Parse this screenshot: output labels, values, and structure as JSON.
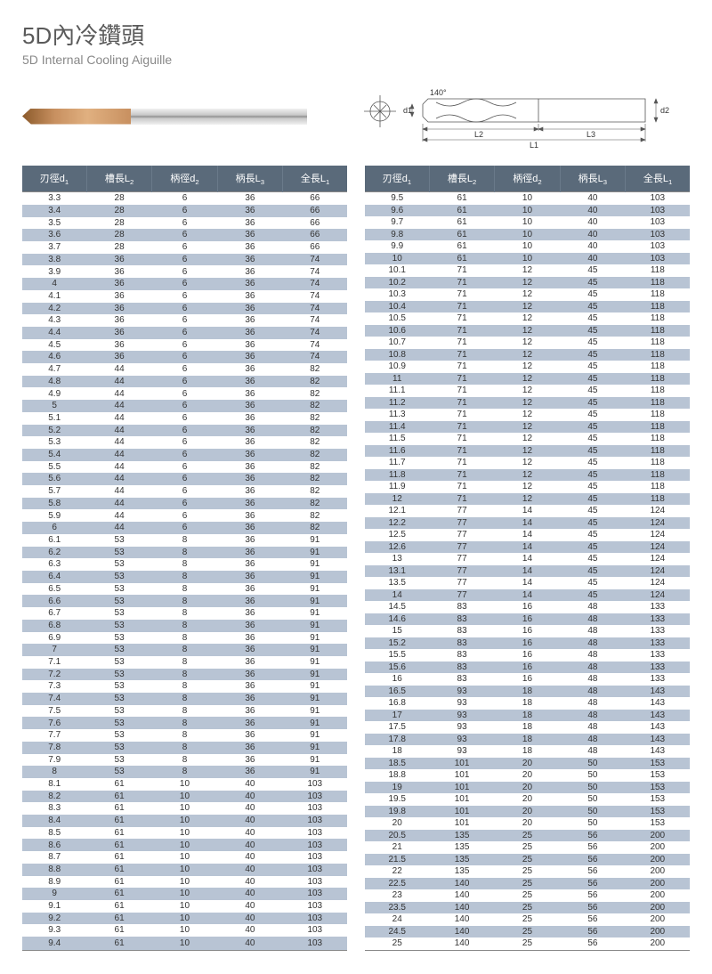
{
  "title_cn": "5D內冷鑽頭",
  "title_en": "5D Internal Cooling Aiguille",
  "diagram_labels": {
    "d1": "d1",
    "d2": "d2",
    "angle": "140°",
    "L1": "L1",
    "L2": "L2",
    "L3": "L3"
  },
  "colors": {
    "header_bg": "#5a6a7a",
    "band_bg": "#b8c4d4",
    "text": "#333333",
    "title": "#5a5a5a",
    "subtitle": "#888888"
  },
  "columns": [
    {
      "label": "刃徑d",
      "sub": "1"
    },
    {
      "label": "槽長L",
      "sub": "2"
    },
    {
      "label": "柄徑d",
      "sub": "2"
    },
    {
      "label": "柄長L",
      "sub": "3"
    },
    {
      "label": "全長L",
      "sub": "1"
    }
  ],
  "left_rows": [
    [
      "3.3",
      "28",
      "6",
      "36",
      "66"
    ],
    [
      "3.4",
      "28",
      "6",
      "36",
      "66"
    ],
    [
      "3.5",
      "28",
      "6",
      "36",
      "66"
    ],
    [
      "3.6",
      "28",
      "6",
      "36",
      "66"
    ],
    [
      "3.7",
      "28",
      "6",
      "36",
      "66"
    ],
    [
      "3.8",
      "36",
      "6",
      "36",
      "74"
    ],
    [
      "3.9",
      "36",
      "6",
      "36",
      "74"
    ],
    [
      "4",
      "36",
      "6",
      "36",
      "74"
    ],
    [
      "4.1",
      "36",
      "6",
      "36",
      "74"
    ],
    [
      "4.2",
      "36",
      "6",
      "36",
      "74"
    ],
    [
      "4.3",
      "36",
      "6",
      "36",
      "74"
    ],
    [
      "4.4",
      "36",
      "6",
      "36",
      "74"
    ],
    [
      "4.5",
      "36",
      "6",
      "36",
      "74"
    ],
    [
      "4.6",
      "36",
      "6",
      "36",
      "74"
    ],
    [
      "4.7",
      "44",
      "6",
      "36",
      "82"
    ],
    [
      "4.8",
      "44",
      "6",
      "36",
      "82"
    ],
    [
      "4.9",
      "44",
      "6",
      "36",
      "82"
    ],
    [
      "5",
      "44",
      "6",
      "36",
      "82"
    ],
    [
      "5.1",
      "44",
      "6",
      "36",
      "82"
    ],
    [
      "5.2",
      "44",
      "6",
      "36",
      "82"
    ],
    [
      "5.3",
      "44",
      "6",
      "36",
      "82"
    ],
    [
      "5.4",
      "44",
      "6",
      "36",
      "82"
    ],
    [
      "5.5",
      "44",
      "6",
      "36",
      "82"
    ],
    [
      "5.6",
      "44",
      "6",
      "36",
      "82"
    ],
    [
      "5.7",
      "44",
      "6",
      "36",
      "82"
    ],
    [
      "5.8",
      "44",
      "6",
      "36",
      "82"
    ],
    [
      "5.9",
      "44",
      "6",
      "36",
      "82"
    ],
    [
      "6",
      "44",
      "6",
      "36",
      "82"
    ],
    [
      "6.1",
      "53",
      "8",
      "36",
      "91"
    ],
    [
      "6.2",
      "53",
      "8",
      "36",
      "91"
    ],
    [
      "6.3",
      "53",
      "8",
      "36",
      "91"
    ],
    [
      "6.4",
      "53",
      "8",
      "36",
      "91"
    ],
    [
      "6.5",
      "53",
      "8",
      "36",
      "91"
    ],
    [
      "6.6",
      "53",
      "8",
      "36",
      "91"
    ],
    [
      "6.7",
      "53",
      "8",
      "36",
      "91"
    ],
    [
      "6.8",
      "53",
      "8",
      "36",
      "91"
    ],
    [
      "6.9",
      "53",
      "8",
      "36",
      "91"
    ],
    [
      "7",
      "53",
      "8",
      "36",
      "91"
    ],
    [
      "7.1",
      "53",
      "8",
      "36",
      "91"
    ],
    [
      "7.2",
      "53",
      "8",
      "36",
      "91"
    ],
    [
      "7.3",
      "53",
      "8",
      "36",
      "91"
    ],
    [
      "7.4",
      "53",
      "8",
      "36",
      "91"
    ],
    [
      "7.5",
      "53",
      "8",
      "36",
      "91"
    ],
    [
      "7.6",
      "53",
      "8",
      "36",
      "91"
    ],
    [
      "7.7",
      "53",
      "8",
      "36",
      "91"
    ],
    [
      "7.8",
      "53",
      "8",
      "36",
      "91"
    ],
    [
      "7.9",
      "53",
      "8",
      "36",
      "91"
    ],
    [
      "8",
      "53",
      "8",
      "36",
      "91"
    ],
    [
      "8.1",
      "61",
      "10",
      "40",
      "103"
    ],
    [
      "8.2",
      "61",
      "10",
      "40",
      "103"
    ],
    [
      "8.3",
      "61",
      "10",
      "40",
      "103"
    ],
    [
      "8.4",
      "61",
      "10",
      "40",
      "103"
    ],
    [
      "8.5",
      "61",
      "10",
      "40",
      "103"
    ],
    [
      "8.6",
      "61",
      "10",
      "40",
      "103"
    ],
    [
      "8.7",
      "61",
      "10",
      "40",
      "103"
    ],
    [
      "8.8",
      "61",
      "10",
      "40",
      "103"
    ],
    [
      "8.9",
      "61",
      "10",
      "40",
      "103"
    ],
    [
      "9",
      "61",
      "10",
      "40",
      "103"
    ],
    [
      "9.1",
      "61",
      "10",
      "40",
      "103"
    ],
    [
      "9.2",
      "61",
      "10",
      "40",
      "103"
    ],
    [
      "9.3",
      "61",
      "10",
      "40",
      "103"
    ],
    [
      "9.4",
      "61",
      "10",
      "40",
      "103"
    ]
  ],
  "right_rows": [
    [
      "9.5",
      "61",
      "10",
      "40",
      "103"
    ],
    [
      "9.6",
      "61",
      "10",
      "40",
      "103"
    ],
    [
      "9.7",
      "61",
      "10",
      "40",
      "103"
    ],
    [
      "9.8",
      "61",
      "10",
      "40",
      "103"
    ],
    [
      "9.9",
      "61",
      "10",
      "40",
      "103"
    ],
    [
      "10",
      "61",
      "10",
      "40",
      "103"
    ],
    [
      "10.1",
      "71",
      "12",
      "45",
      "118"
    ],
    [
      "10.2",
      "71",
      "12",
      "45",
      "118"
    ],
    [
      "10.3",
      "71",
      "12",
      "45",
      "118"
    ],
    [
      "10.4",
      "71",
      "12",
      "45",
      "118"
    ],
    [
      "10.5",
      "71",
      "12",
      "45",
      "118"
    ],
    [
      "10.6",
      "71",
      "12",
      "45",
      "118"
    ],
    [
      "10.7",
      "71",
      "12",
      "45",
      "118"
    ],
    [
      "10.8",
      "71",
      "12",
      "45",
      "118"
    ],
    [
      "10.9",
      "71",
      "12",
      "45",
      "118"
    ],
    [
      "11",
      "71",
      "12",
      "45",
      "118"
    ],
    [
      "11.1",
      "71",
      "12",
      "45",
      "118"
    ],
    [
      "11.2",
      "71",
      "12",
      "45",
      "118"
    ],
    [
      "11.3",
      "71",
      "12",
      "45",
      "118"
    ],
    [
      "11.4",
      "71",
      "12",
      "45",
      "118"
    ],
    [
      "11.5",
      "71",
      "12",
      "45",
      "118"
    ],
    [
      "11.6",
      "71",
      "12",
      "45",
      "118"
    ],
    [
      "11.7",
      "71",
      "12",
      "45",
      "118"
    ],
    [
      "11.8",
      "71",
      "12",
      "45",
      "118"
    ],
    [
      "11.9",
      "71",
      "12",
      "45",
      "118"
    ],
    [
      "12",
      "71",
      "12",
      "45",
      "118"
    ],
    [
      "12.1",
      "77",
      "14",
      "45",
      "124"
    ],
    [
      "12.2",
      "77",
      "14",
      "45",
      "124"
    ],
    [
      "12.5",
      "77",
      "14",
      "45",
      "124"
    ],
    [
      "12.6",
      "77",
      "14",
      "45",
      "124"
    ],
    [
      "13",
      "77",
      "14",
      "45",
      "124"
    ],
    [
      "13.1",
      "77",
      "14",
      "45",
      "124"
    ],
    [
      "13.5",
      "77",
      "14",
      "45",
      "124"
    ],
    [
      "14",
      "77",
      "14",
      "45",
      "124"
    ],
    [
      "14.5",
      "83",
      "16",
      "48",
      "133"
    ],
    [
      "14.6",
      "83",
      "16",
      "48",
      "133"
    ],
    [
      "15",
      "83",
      "16",
      "48",
      "133"
    ],
    [
      "15.2",
      "83",
      "16",
      "48",
      "133"
    ],
    [
      "15.5",
      "83",
      "16",
      "48",
      "133"
    ],
    [
      "15.6",
      "83",
      "16",
      "48",
      "133"
    ],
    [
      "16",
      "83",
      "16",
      "48",
      "133"
    ],
    [
      "16.5",
      "93",
      "18",
      "48",
      "143"
    ],
    [
      "16.8",
      "93",
      "18",
      "48",
      "143"
    ],
    [
      "17",
      "93",
      "18",
      "48",
      "143"
    ],
    [
      "17.5",
      "93",
      "18",
      "48",
      "143"
    ],
    [
      "17.8",
      "93",
      "18",
      "48",
      "143"
    ],
    [
      "18",
      "93",
      "18",
      "48",
      "143"
    ],
    [
      "18.5",
      "101",
      "20",
      "50",
      "153"
    ],
    [
      "18.8",
      "101",
      "20",
      "50",
      "153"
    ],
    [
      "19",
      "101",
      "20",
      "50",
      "153"
    ],
    [
      "19.5",
      "101",
      "20",
      "50",
      "153"
    ],
    [
      "19.8",
      "101",
      "20",
      "50",
      "153"
    ],
    [
      "20",
      "101",
      "20",
      "50",
      "153"
    ],
    [
      "20.5",
      "135",
      "25",
      "56",
      "200"
    ],
    [
      "21",
      "135",
      "25",
      "56",
      "200"
    ],
    [
      "21.5",
      "135",
      "25",
      "56",
      "200"
    ],
    [
      "22",
      "135",
      "25",
      "56",
      "200"
    ],
    [
      "22.5",
      "140",
      "25",
      "56",
      "200"
    ],
    [
      "23",
      "140",
      "25",
      "56",
      "200"
    ],
    [
      "23.5",
      "140",
      "25",
      "56",
      "200"
    ],
    [
      "24",
      "140",
      "25",
      "56",
      "200"
    ],
    [
      "24.5",
      "140",
      "25",
      "56",
      "200"
    ],
    [
      "25",
      "140",
      "25",
      "56",
      "200"
    ]
  ]
}
